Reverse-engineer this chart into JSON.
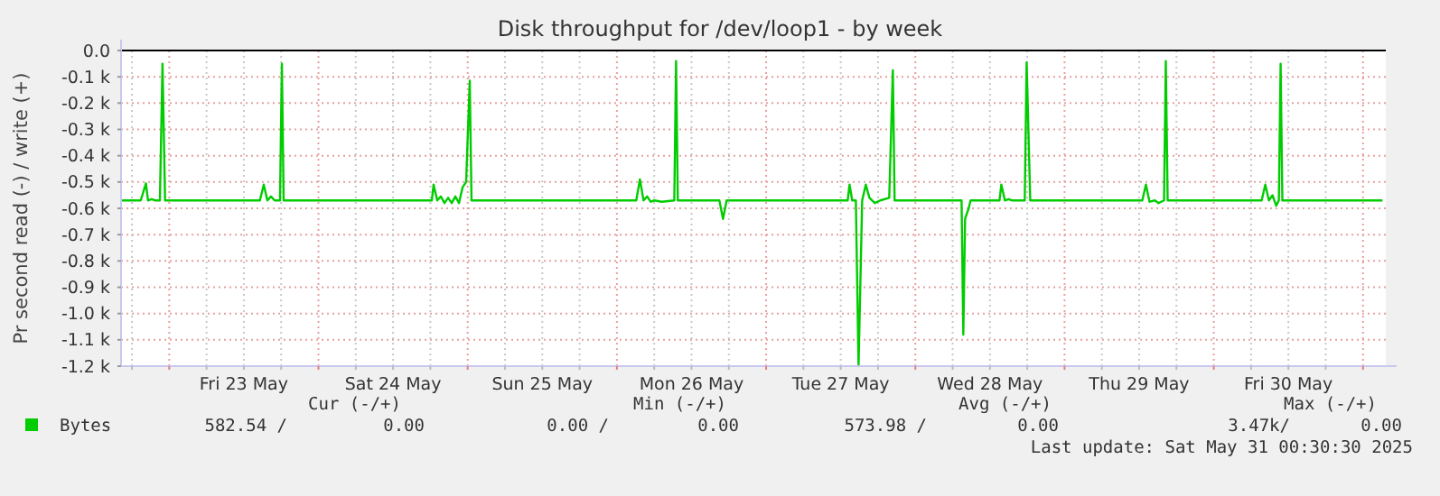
{
  "chart_data": {
    "type": "line",
    "title": "Disk throughput for /dev/loop1 - by week",
    "ylabel": "Pr second read (-) / write (+)",
    "xlim": [
      "2025-05-22T16:15",
      "2025-05-31T03:40"
    ],
    "xticks": [
      {
        "value": "2025-05-22T18:00",
        "label": null
      },
      {
        "value": "2025-05-23T00:00",
        "label": null
      },
      {
        "value": "2025-05-23T06:00",
        "label": null
      },
      {
        "value": "2025-05-23T12:00",
        "label": "Fri 23 May"
      },
      {
        "value": "2025-05-23T18:00",
        "label": null
      },
      {
        "value": "2025-05-24T00:00",
        "label": null
      },
      {
        "value": "2025-05-24T06:00",
        "label": null
      },
      {
        "value": "2025-05-24T12:00",
        "label": "Sat 24 May"
      },
      {
        "value": "2025-05-24T18:00",
        "label": null
      },
      {
        "value": "2025-05-25T00:00",
        "label": null
      },
      {
        "value": "2025-05-25T06:00",
        "label": null
      },
      {
        "value": "2025-05-25T12:00",
        "label": "Sun 25 May"
      },
      {
        "value": "2025-05-25T18:00",
        "label": null
      },
      {
        "value": "2025-05-26T00:00",
        "label": null
      },
      {
        "value": "2025-05-26T06:00",
        "label": null
      },
      {
        "value": "2025-05-26T12:00",
        "label": "Mon 26 May"
      },
      {
        "value": "2025-05-26T18:00",
        "label": null
      },
      {
        "value": "2025-05-27T00:00",
        "label": null
      },
      {
        "value": "2025-05-27T06:00",
        "label": null
      },
      {
        "value": "2025-05-27T12:00",
        "label": "Tue 27 May"
      },
      {
        "value": "2025-05-27T18:00",
        "label": null
      },
      {
        "value": "2025-05-28T00:00",
        "label": null
      },
      {
        "value": "2025-05-28T06:00",
        "label": null
      },
      {
        "value": "2025-05-28T12:00",
        "label": "Wed 28 May"
      },
      {
        "value": "2025-05-28T18:00",
        "label": null
      },
      {
        "value": "2025-05-29T00:00",
        "label": null
      },
      {
        "value": "2025-05-29T06:00",
        "label": null
      },
      {
        "value": "2025-05-29T12:00",
        "label": "Thu 29 May"
      },
      {
        "value": "2025-05-29T18:00",
        "label": null
      },
      {
        "value": "2025-05-30T00:00",
        "label": null
      },
      {
        "value": "2025-05-30T06:00",
        "label": null
      },
      {
        "value": "2025-05-30T12:00",
        "label": "Fri 30 May"
      },
      {
        "value": "2025-05-30T18:00",
        "label": null
      },
      {
        "value": "2025-05-31T00:00",
        "label": null
      }
    ],
    "ylim": [
      -1200,
      0
    ],
    "yticks": [
      {
        "value": 0,
        "label": "0.0"
      },
      {
        "value": -100,
        "label": "-0.1 k"
      },
      {
        "value": -200,
        "label": "-0.2 k"
      },
      {
        "value": -300,
        "label": "-0.3 k"
      },
      {
        "value": -400,
        "label": "-0.4 k"
      },
      {
        "value": -500,
        "label": "-0.5 k"
      },
      {
        "value": -600,
        "label": "-0.6 k"
      },
      {
        "value": -700,
        "label": "-0.7 k"
      },
      {
        "value": -800,
        "label": "-0.8 k"
      },
      {
        "value": -900,
        "label": "-0.9 k"
      },
      {
        "value": -1000,
        "label": "-1.0 k"
      },
      {
        "value": -1100,
        "label": "-1.1 k"
      },
      {
        "value": -1200,
        "label": "-1.2 k"
      }
    ],
    "grid": true,
    "legend": "bottom left",
    "marker": "none",
    "line_style": "solid",
    "ref_lines": [
      {
        "axis": "y",
        "value": 0,
        "color": "#000000"
      }
    ],
    "series": [
      {
        "name": "Bytes",
        "color": "#00cc00",
        "x": [
          "2025-05-22T16:15",
          "2025-05-22T19:25",
          "2025-05-22T20:15",
          "2025-05-22T20:35",
          "2025-05-22T21:10",
          "2025-05-22T21:45",
          "2025-05-22T22:30",
          "2025-05-22T22:55",
          "2025-05-22T23:20",
          "2025-05-23T14:35",
          "2025-05-23T15:12",
          "2025-05-23T15:47",
          "2025-05-23T16:22",
          "2025-05-23T16:57",
          "2025-05-23T17:49",
          "2025-05-23T18:07",
          "2025-05-23T18:24",
          "2025-05-24T18:14",
          "2025-05-24T18:31",
          "2025-05-24T19:06",
          "2025-05-24T19:41",
          "2025-05-24T20:16",
          "2025-05-24T20:51",
          "2025-05-24T21:26",
          "2025-05-24T22:01",
          "2025-05-24T22:36",
          "2025-05-24T23:11",
          "2025-05-24T23:45",
          "2025-05-25T00:20",
          "2025-05-25T00:37",
          "2025-05-26T03:07",
          "2025-05-26T03:42",
          "2025-05-26T04:17",
          "2025-05-26T04:52",
          "2025-05-26T05:27",
          "2025-05-26T06:02",
          "2025-05-26T07:12",
          "2025-05-26T09:14",
          "2025-05-26T09:31",
          "2025-05-26T09:48",
          "2025-05-26T16:29",
          "2025-05-26T17:04",
          "2025-05-26T17:39",
          "2025-05-27T13:07",
          "2025-05-27T13:25",
          "2025-05-27T13:51",
          "2025-05-27T14:26",
          "2025-05-27T14:52",
          "2025-05-27T15:27",
          "2025-05-27T16:02",
          "2025-05-27T16:37",
          "2025-05-27T17:29",
          "2025-05-27T18:21",
          "2025-05-27T19:48",
          "2025-05-27T20:23",
          "2025-05-27T20:40",
          "2025-05-28T07:26",
          "2025-05-28T07:43",
          "2025-05-28T08:00",
          "2025-05-28T08:35",
          "2025-05-28T08:53",
          "2025-05-28T13:32",
          "2025-05-28T13:50",
          "2025-05-28T14:24",
          "2025-05-28T14:59",
          "2025-05-28T15:34",
          "2025-05-28T17:36",
          "2025-05-28T17:54",
          "2025-05-28T18:29",
          "2025-05-29T12:30",
          "2025-05-29T13:05",
          "2025-05-29T13:40",
          "2025-05-29T14:32",
          "2025-05-29T15:07",
          "2025-05-29T16:00",
          "2025-05-29T16:17",
          "2025-05-29T16:35",
          "2025-05-30T07:42",
          "2025-05-30T08:17",
          "2025-05-30T08:52",
          "2025-05-30T09:27",
          "2025-05-30T10:02",
          "2025-05-30T10:28",
          "2025-05-30T10:45",
          "2025-05-30T11:02",
          "2025-05-31T03:08"
        ],
        "values": [
          -570,
          -570,
          -505,
          -570,
          -565,
          -570,
          -570,
          -50,
          -570,
          -570,
          -510,
          -570,
          -555,
          -570,
          -570,
          -50,
          -570,
          -570,
          -510,
          -570,
          -555,
          -580,
          -560,
          -580,
          -555,
          -580,
          -520,
          -500,
          -115,
          -570,
          -570,
          -490,
          -570,
          -555,
          -575,
          -570,
          -575,
          -570,
          -40,
          -570,
          -570,
          -640,
          -570,
          -570,
          -510,
          -570,
          -570,
          -1200,
          -570,
          -510,
          -560,
          -580,
          -570,
          -560,
          -75,
          -570,
          -570,
          -1080,
          -640,
          -600,
          -570,
          -570,
          -510,
          -570,
          -565,
          -570,
          -570,
          -45,
          -570,
          -570,
          -510,
          -575,
          -570,
          -580,
          -570,
          -40,
          -570,
          -570,
          -510,
          -570,
          -550,
          -590,
          -570,
          -50,
          -570,
          -570
        ]
      }
    ],
    "annotations": [
      "Cur (-/+)",
      "Min (-/+)",
      "Avg (-/+)",
      "Max (-/+)",
      "582.54 /",
      "0.00",
      "0.00 /",
      "0.00",
      "573.98 /",
      "0.00",
      "3.47k/",
      "0.00",
      "Last update: Sat May 31 00:30:30 2025"
    ]
  }
}
